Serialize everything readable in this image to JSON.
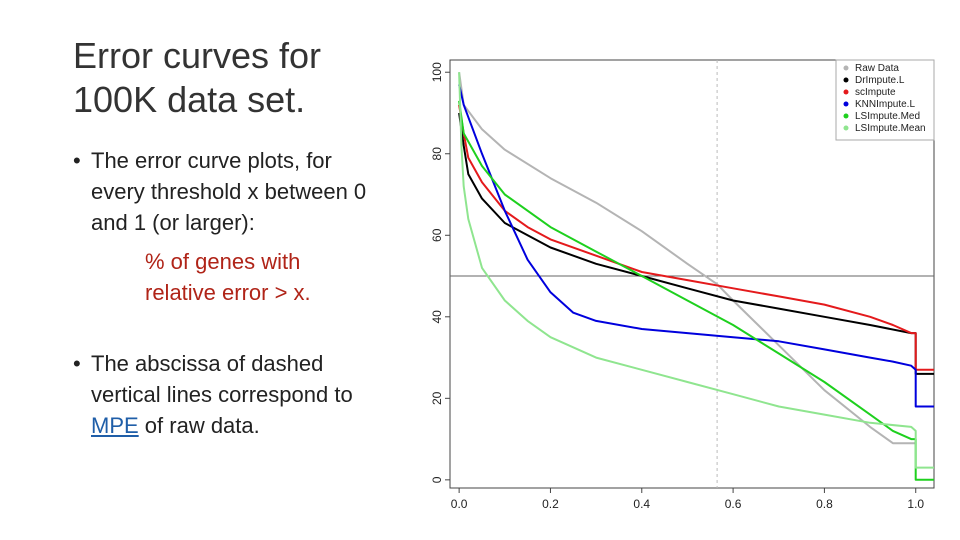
{
  "slide": {
    "title_line1": "Error curves for",
    "title_line2": "100K data set.",
    "bullet1_lines": [
      "The error curve plots, for",
      "every threshold x between 0",
      "and 1 (or larger):"
    ],
    "bullet1_sub_lines": [
      "% of genes with",
      "relative error > x."
    ],
    "bullet2_lines": [
      "The abscissa of dashed",
      "vertical lines correspond to"
    ],
    "bullet2_link": "MPE",
    "bullet2_tail": " of raw data."
  },
  "chart_data": {
    "type": "line",
    "title": "",
    "xlabel": "",
    "ylabel": "",
    "xlim": [
      -0.02,
      1.04
    ],
    "ylim": [
      -2,
      103
    ],
    "x_ticks": [
      "0.0",
      "0.2",
      "0.4",
      "0.6",
      "0.8",
      "1.0"
    ],
    "y_ticks": [
      "0",
      "20",
      "40",
      "60",
      "80",
      "100"
    ],
    "x_tick_values": [
      0,
      0.2,
      0.4,
      0.6,
      0.8,
      1.0
    ],
    "y_tick_values": [
      0,
      20,
      40,
      60,
      80,
      100
    ],
    "grid": false,
    "legend_position": "top-right",
    "reference_lines": {
      "horizontal_y": 50,
      "horizontal_color": "#666666",
      "vertical_x": 0.565,
      "vertical_color": "#bbbbbb",
      "vertical_style": "dashed"
    },
    "series": [
      {
        "name": "Raw Data",
        "color": "#b4b4b4",
        "x": [
          0,
          0.01,
          0.05,
          0.1,
          0.2,
          0.3,
          0.4,
          0.5,
          0.565,
          0.6,
          0.7,
          0.8,
          0.9,
          0.95,
          1.0
        ],
        "y": [
          100,
          92,
          86,
          81,
          74,
          68,
          61,
          53,
          48,
          44,
          33,
          22,
          13,
          9,
          9
        ]
      },
      {
        "name": "DrImpute.L",
        "color": "#000000",
        "x": [
          0,
          0.01,
          0.02,
          0.05,
          0.1,
          0.15,
          0.2,
          0.3,
          0.4,
          0.5,
          0.6,
          0.7,
          0.8,
          0.9,
          0.99,
          1.0,
          1.0,
          1.04
        ],
        "y": [
          90,
          82,
          75,
          69,
          63,
          60,
          57,
          53,
          50,
          47,
          44,
          42,
          40,
          38,
          36,
          36,
          26,
          26
        ]
      },
      {
        "name": "scImpute",
        "color": "#e41a1c",
        "x": [
          0,
          0.01,
          0.02,
          0.05,
          0.1,
          0.15,
          0.2,
          0.3,
          0.4,
          0.5,
          0.6,
          0.7,
          0.8,
          0.9,
          0.95,
          0.99,
          1.0,
          1.0,
          1.04
        ],
        "y": [
          92,
          85,
          79,
          73,
          66,
          62,
          59,
          55,
          51,
          49,
          47,
          45,
          43,
          40,
          38,
          36,
          36,
          27,
          27
        ]
      },
      {
        "name": "KNNImpute.L",
        "color": "#0000dd",
        "x": [
          0,
          0.01,
          0.05,
          0.1,
          0.15,
          0.2,
          0.25,
          0.3,
          0.4,
          0.5,
          0.6,
          0.7,
          0.8,
          0.9,
          0.95,
          0.99,
          1.0,
          1.0,
          1.04
        ],
        "y": [
          97,
          92,
          80,
          66,
          54,
          46,
          41,
          39,
          37,
          36,
          35,
          34,
          32,
          30,
          29,
          28,
          27,
          18,
          18
        ]
      },
      {
        "name": "LSImpute.Med",
        "color": "#1ed01e",
        "x": [
          0,
          0.01,
          0.05,
          0.1,
          0.2,
          0.3,
          0.4,
          0.5,
          0.6,
          0.7,
          0.8,
          0.9,
          0.95,
          0.99,
          1.0,
          1.0,
          1.04
        ],
        "y": [
          93,
          85,
          77,
          70,
          62,
          56,
          50,
          44,
          38,
          31,
          24,
          16,
          12,
          10,
          10,
          0,
          0
        ]
      },
      {
        "name": "LSImpute.Mean",
        "color": "#8fe58f",
        "x": [
          0,
          0.005,
          0.01,
          0.02,
          0.05,
          0.1,
          0.15,
          0.2,
          0.3,
          0.4,
          0.5,
          0.6,
          0.7,
          0.8,
          0.9,
          0.99,
          1.0,
          1.0,
          1.04
        ],
        "y": [
          100,
          82,
          72,
          64,
          52,
          44,
          39,
          35,
          30,
          27,
          24,
          21,
          18,
          16,
          14,
          13,
          12,
          3,
          3
        ]
      }
    ]
  }
}
